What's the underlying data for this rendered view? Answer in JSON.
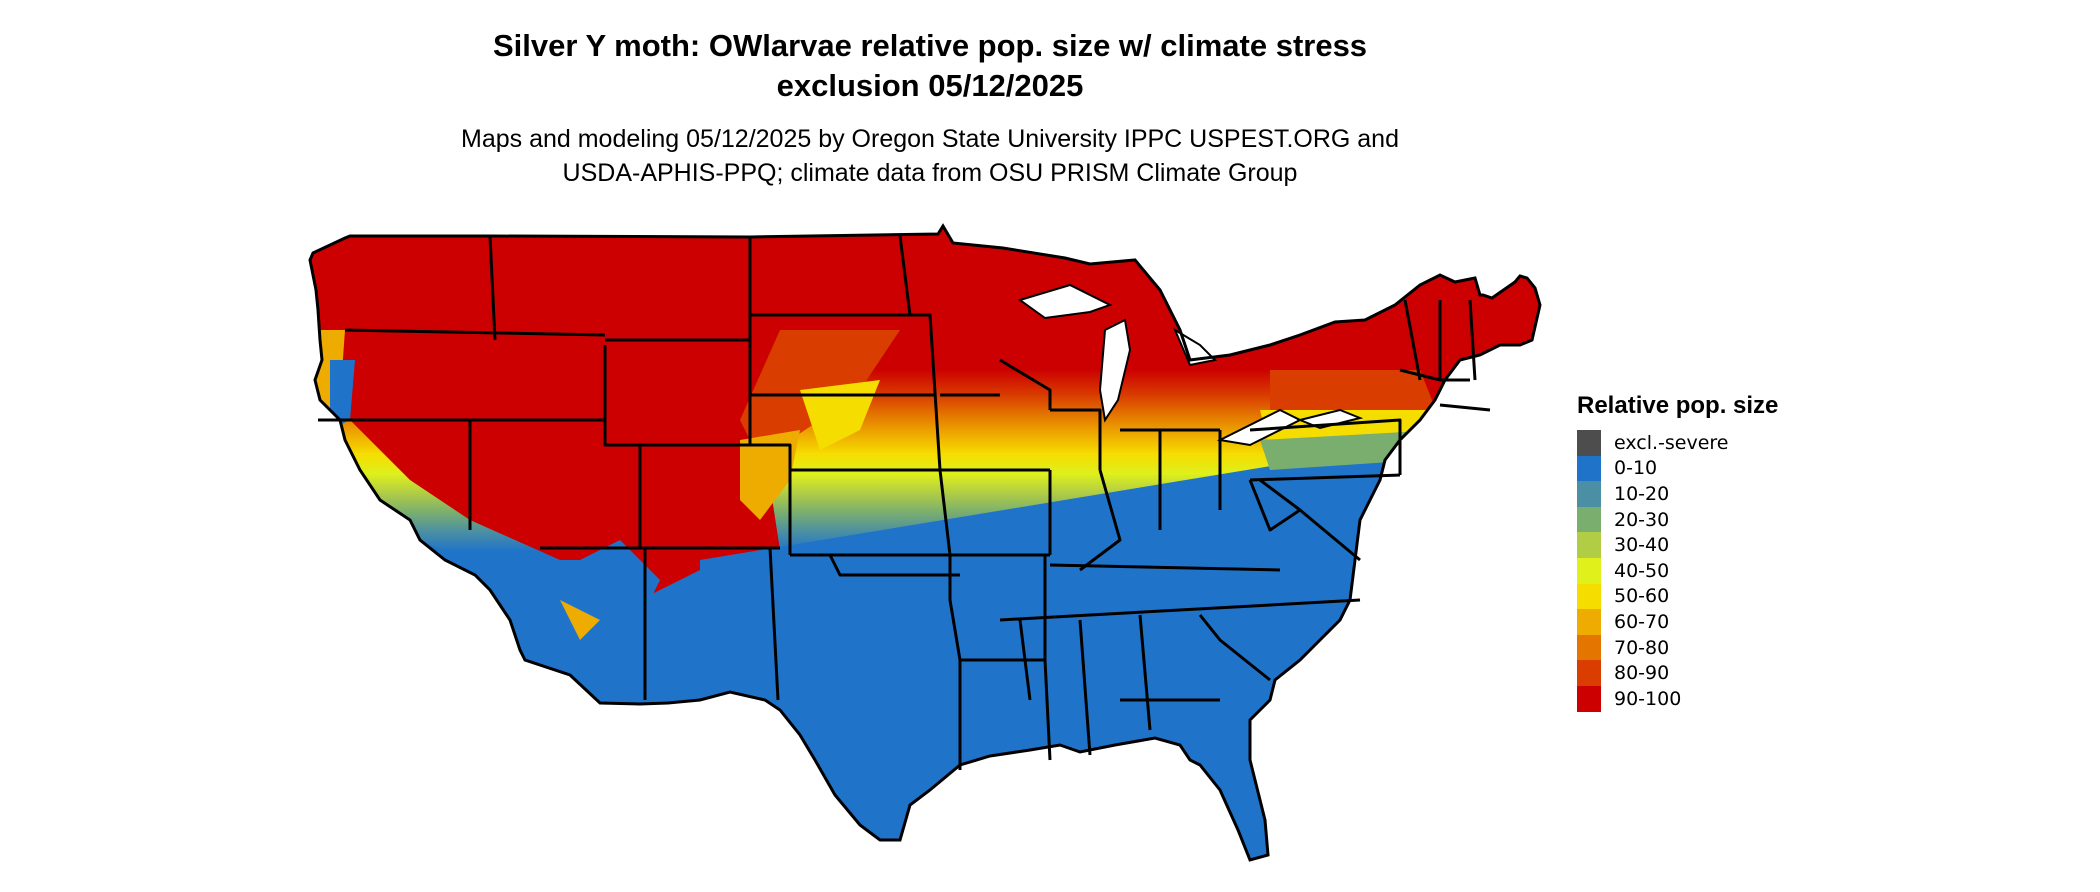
{
  "title": {
    "line1": "Silver Y moth: OWlarvae relative pop. size w/ climate stress",
    "line2": "exclusion 05/12/2025"
  },
  "subtitle": {
    "line1": "Maps and modeling 05/12/2025 by Oregon State University IPPC USPEST.ORG and",
    "line2": "USDA-APHIS-PPQ; climate data from OSU PRISM Climate Group"
  },
  "legend": {
    "title": "Relative pop. size",
    "items": [
      {
        "label": "excl.-severe",
        "color": "#4d4d4d"
      },
      {
        "label": "0-10",
        "color": "#1f74ca"
      },
      {
        "label": "10-20",
        "color": "#4a8fa3"
      },
      {
        "label": "20-30",
        "color": "#7aae6f"
      },
      {
        "label": "30-40",
        "color": "#b0cd45"
      },
      {
        "label": "40-50",
        "color": "#dff01b"
      },
      {
        "label": "50-60",
        "color": "#f6dd00"
      },
      {
        "label": "60-70",
        "color": "#eeab00"
      },
      {
        "label": "70-80",
        "color": "#e47600"
      },
      {
        "label": "80-90",
        "color": "#d93d00"
      },
      {
        "label": "90-100",
        "color": "#cc0000"
      }
    ]
  }
}
